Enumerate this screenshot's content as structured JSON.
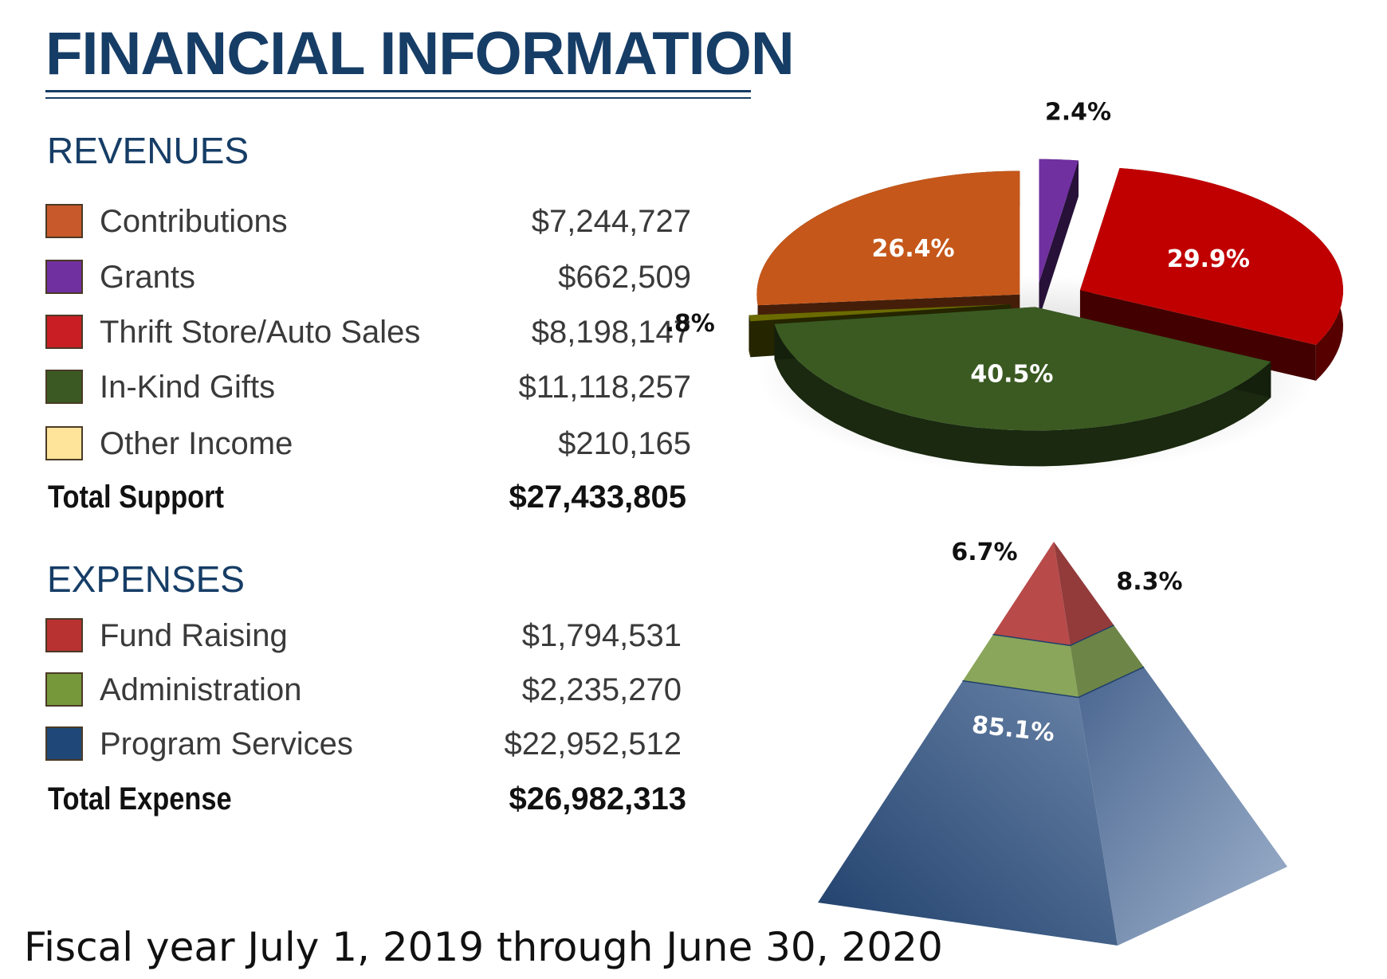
{
  "header": {
    "title": "FINANCIAL INFORMATION"
  },
  "revenues": {
    "heading": "REVENUES",
    "items": [
      {
        "label": "Contributions",
        "amount": "$7,244,727",
        "color": "#c8592a"
      },
      {
        "label": "Grants",
        "amount": "$662,509",
        "color": "#7030a0"
      },
      {
        "label": "Thrift Store/Auto Sales",
        "amount": "$8,198,147",
        "color": "#c81e24"
      },
      {
        "label": "In-Kind Gifts",
        "amount": "$11,118,257",
        "color": "#3b5a23"
      },
      {
        "label": "Other Income",
        "amount": "$210,165",
        "color": "#fde49a"
      }
    ],
    "total_label": "Total Support",
    "total_amount": "$27,433,805"
  },
  "expenses": {
    "heading": "EXPENSES",
    "items": [
      {
        "label": "Fund Raising",
        "amount": "$1,794,531",
        "color": "#b83232"
      },
      {
        "label": "Administration",
        "amount": "$2,235,270",
        "color": "#76983a"
      },
      {
        "label": "Program Services",
        "amount": "$22,952,512",
        "color": "#1f4878"
      }
    ],
    "total_label": "Total Expense",
    "total_amount": "$26,982,313"
  },
  "footer": {
    "fiscal_year": "Fiscal year July 1, 2019 through June 30, 2020"
  },
  "chart_data": [
    {
      "type": "pie",
      "style": "3d-exploded",
      "title": "",
      "slices": [
        {
          "category": "Contributions",
          "value": 26.4,
          "label": "26.4%",
          "color": "#c5571a"
        },
        {
          "category": "Grants",
          "value": 2.4,
          "label": "2.4%",
          "color": "#7030a0"
        },
        {
          "category": "Thrift Store/Auto Sales",
          "value": 29.9,
          "label": "29.9%",
          "color": "#c00000"
        },
        {
          "category": "In-Kind Gifts",
          "value": 40.5,
          "label": "40.5%",
          "color": "#3a5a22"
        },
        {
          "category": "Other Income",
          "value": 0.8,
          "label": ".8%",
          "color": "#6b6b00"
        }
      ]
    },
    {
      "type": "pyramid",
      "style": "3d",
      "title": "",
      "levels": [
        {
          "category": "Fund Raising",
          "value": 6.7,
          "label": "6.7%",
          "color": "#b84a4a"
        },
        {
          "category": "Administration",
          "value": 8.3,
          "label": "8.3%",
          "color": "#8aa65a"
        },
        {
          "category": "Program Services",
          "value": 85.1,
          "label": "85.1%",
          "color": "#3f5d86"
        }
      ]
    }
  ]
}
